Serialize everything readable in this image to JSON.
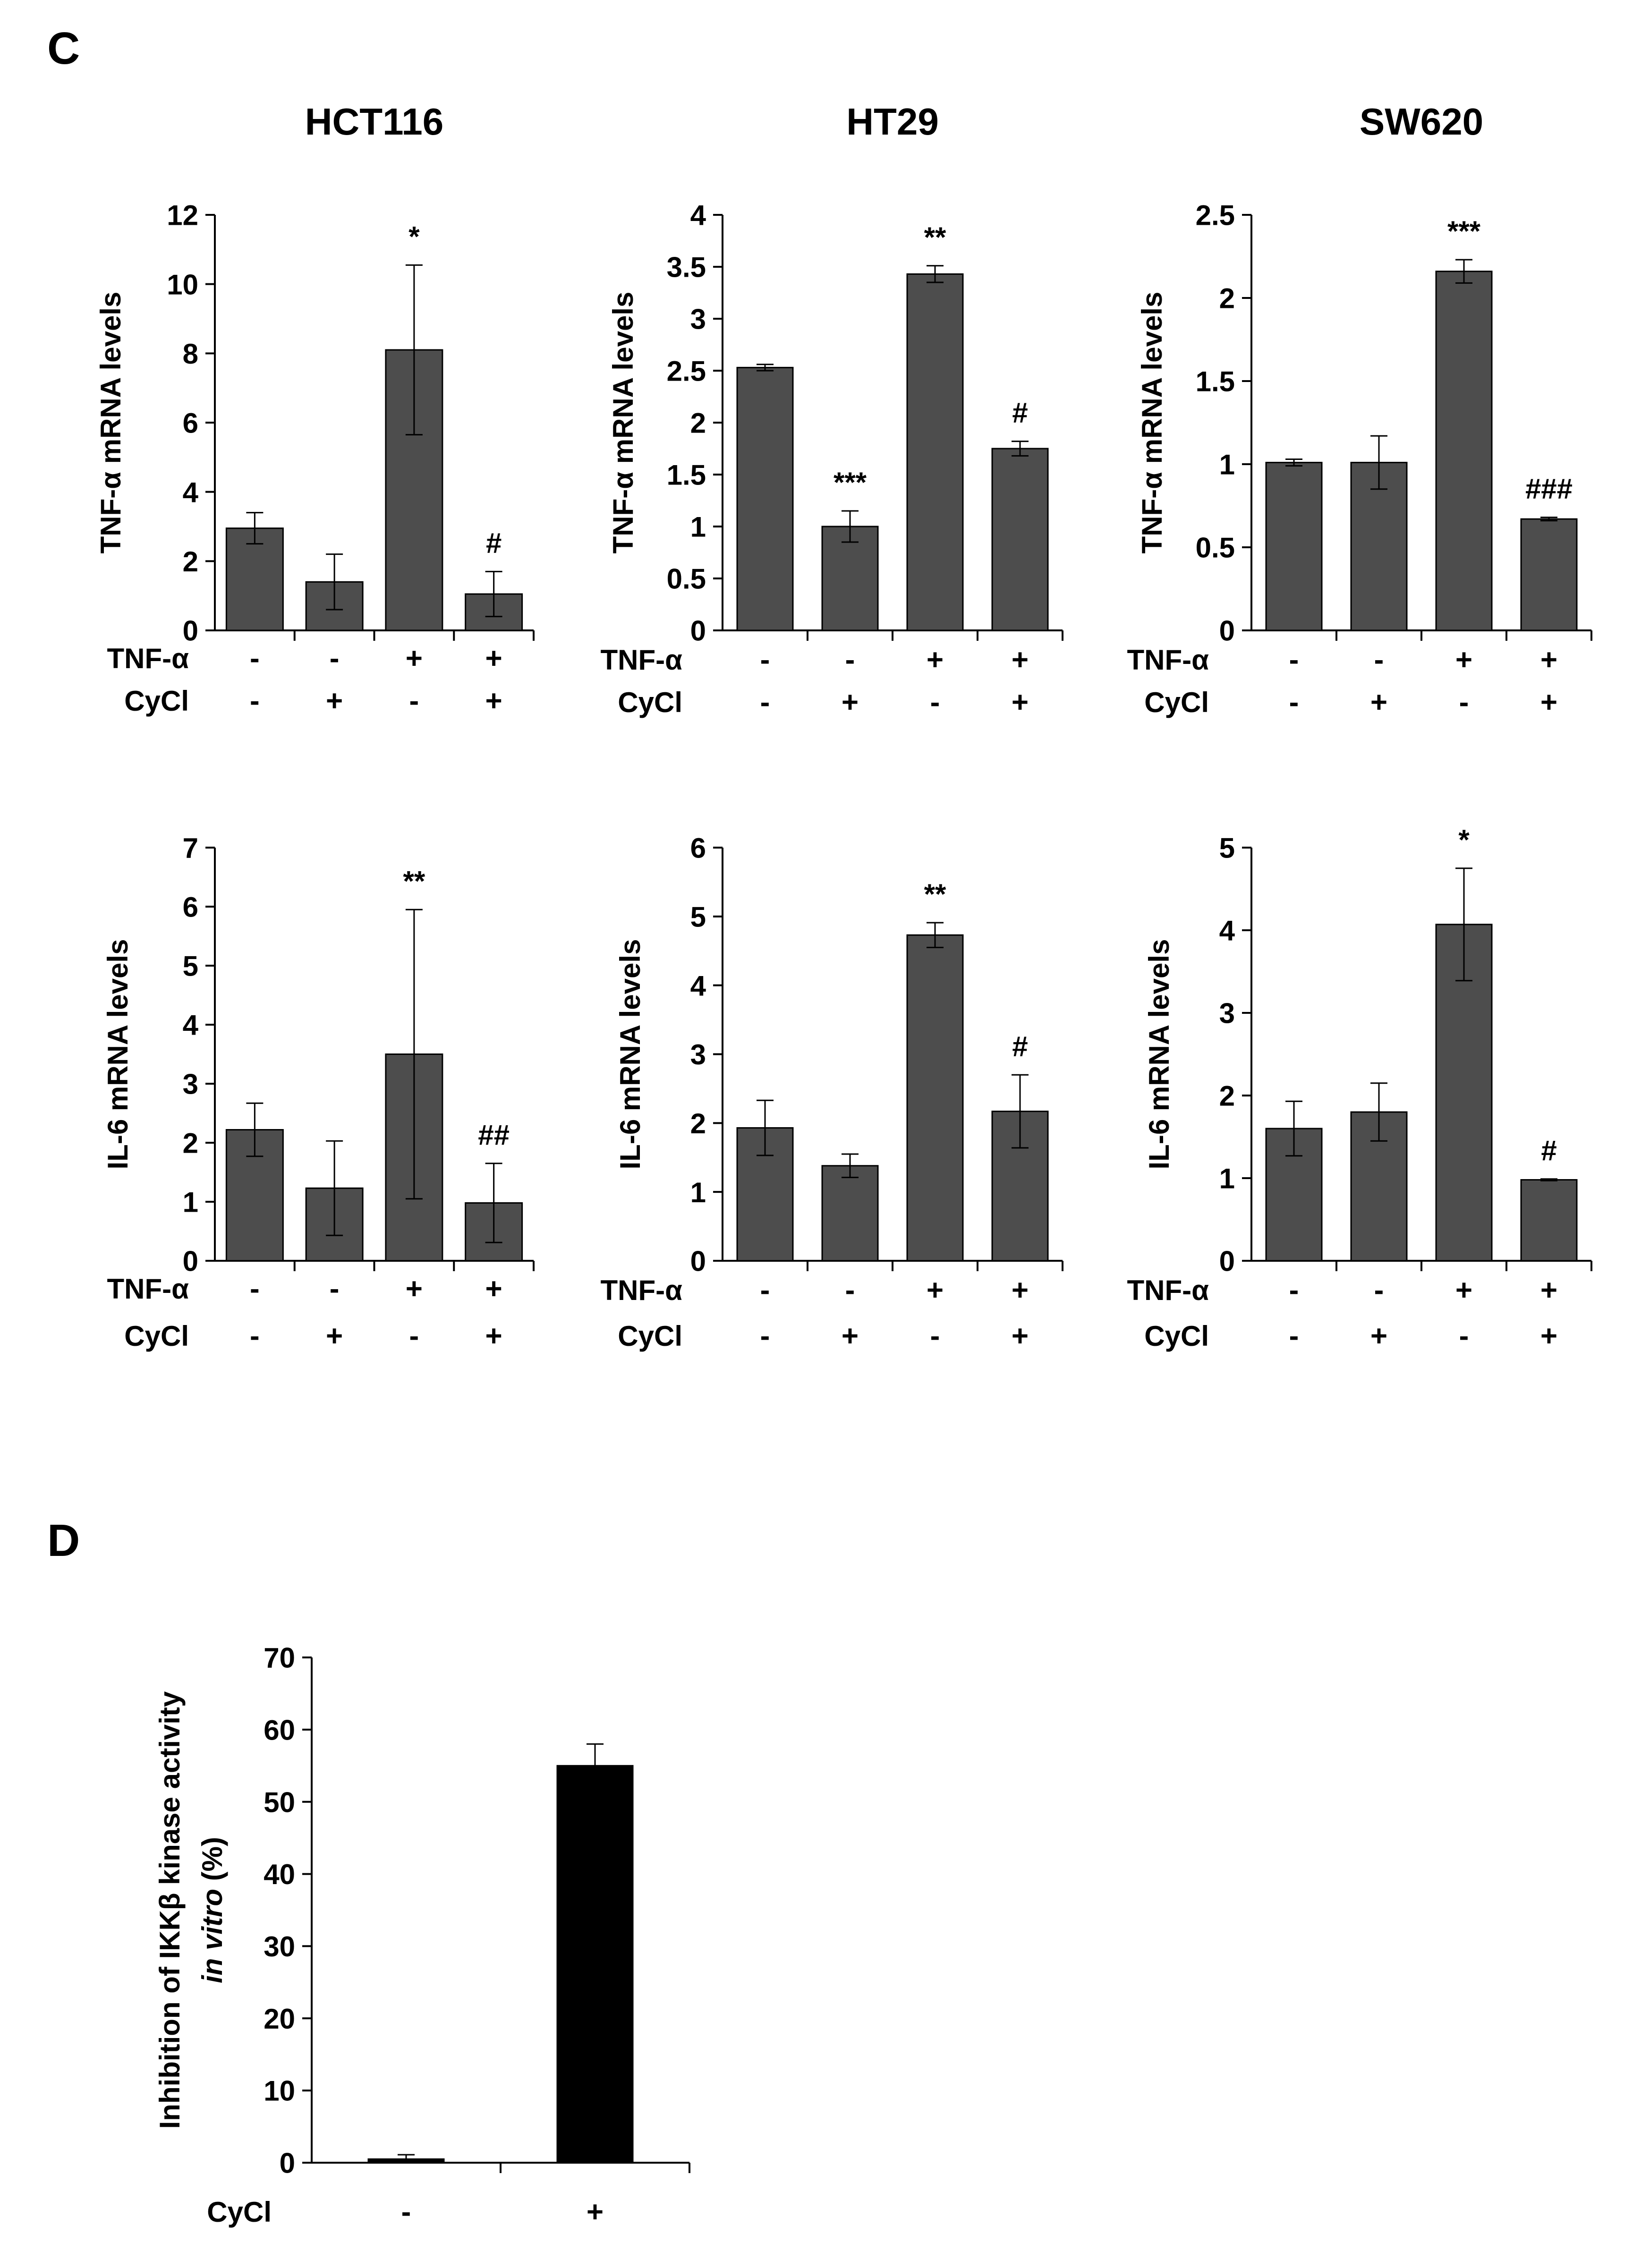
{
  "panels": {
    "C": {
      "label": "C"
    },
    "D": {
      "label": "D"
    }
  },
  "colors": {
    "bar_gray": "#4d4d4d",
    "bar_black": "#000000",
    "axis": "#000000"
  },
  "chart_data": [
    {
      "id": "c1",
      "type": "bar",
      "title": "HCT116",
      "ylabel": "TNF-α mRNA levels",
      "ylim": [
        0,
        12
      ],
      "yticks": [
        "0",
        "2",
        "4",
        "6",
        "8",
        "10",
        "12"
      ],
      "values": [
        2.95,
        1.4,
        8.1,
        1.05
      ],
      "errors": [
        0.45,
        0.8,
        2.45,
        0.65
      ],
      "significance": [
        "",
        "",
        "*",
        "#"
      ],
      "conditions": [
        {
          "label": "TNF-α",
          "marks": [
            "-",
            "-",
            "+",
            "+"
          ]
        },
        {
          "label": "CyCl",
          "marks": [
            "-",
            "+",
            "-",
            "+"
          ]
        }
      ]
    },
    {
      "id": "c2",
      "type": "bar",
      "title": "HT29",
      "ylabel": "TNF-α mRNA levels",
      "ylim": [
        0,
        4
      ],
      "yticks": [
        "0",
        "0.5",
        "1",
        "1.5",
        "2",
        "2.5",
        "3",
        "3.5",
        "4"
      ],
      "values": [
        2.53,
        1.0,
        3.43,
        1.75
      ],
      "errors": [
        0.03,
        0.15,
        0.08,
        0.07
      ],
      "significance": [
        "",
        "***",
        "**",
        "#"
      ],
      "conditions": [
        {
          "label": "TNF-α",
          "marks": [
            "-",
            "-",
            "+",
            "+"
          ]
        },
        {
          "label": "CyCl",
          "marks": [
            "-",
            "+",
            "-",
            "+"
          ]
        }
      ]
    },
    {
      "id": "c3",
      "type": "bar",
      "title": "SW620",
      "ylabel": "TNF-α mRNA levels",
      "ylim": [
        0,
        2.5
      ],
      "yticks": [
        "0",
        "0.5",
        "1",
        "1.5",
        "2",
        "2.5"
      ],
      "values": [
        1.01,
        1.01,
        2.16,
        0.67
      ],
      "errors": [
        0.02,
        0.16,
        0.07,
        0.01
      ],
      "significance": [
        "",
        "",
        "***",
        "###"
      ],
      "conditions": [
        {
          "label": "TNF-α",
          "marks": [
            "-",
            "-",
            "+",
            "+"
          ]
        },
        {
          "label": "CyCl",
          "marks": [
            "-",
            "+",
            "-",
            "+"
          ]
        }
      ]
    },
    {
      "id": "c4",
      "type": "bar",
      "title": "",
      "ylabel": "IL-6 mRNA levels",
      "ylim": [
        0,
        7
      ],
      "yticks": [
        "0",
        "1",
        "2",
        "3",
        "4",
        "5",
        "6",
        "7"
      ],
      "values": [
        2.22,
        1.23,
        3.5,
        0.98
      ],
      "errors": [
        0.45,
        0.8,
        2.45,
        0.67
      ],
      "significance": [
        "",
        "",
        "**",
        "##"
      ],
      "conditions": [
        {
          "label": "TNF-α",
          "marks": [
            "-",
            "-",
            "+",
            "+"
          ]
        },
        {
          "label": "CyCl",
          "marks": [
            "-",
            "+",
            "-",
            "+"
          ]
        }
      ]
    },
    {
      "id": "c5",
      "type": "bar",
      "title": "",
      "ylabel": "IL-6 mRNA levels",
      "ylim": [
        0,
        6
      ],
      "yticks": [
        "0",
        "1",
        "2",
        "3",
        "4",
        "5",
        "6"
      ],
      "values": [
        1.93,
        1.38,
        4.73,
        2.17
      ],
      "errors": [
        0.4,
        0.17,
        0.18,
        0.53
      ],
      "significance": [
        "",
        "",
        "**",
        "#"
      ],
      "conditions": [
        {
          "label": "TNF-α",
          "marks": [
            "-",
            "-",
            "+",
            "+"
          ]
        },
        {
          "label": "CyCl",
          "marks": [
            "-",
            "+",
            "-",
            "+"
          ]
        }
      ]
    },
    {
      "id": "c6",
      "type": "bar",
      "title": "",
      "ylabel": "IL-6 mRNA levels",
      "ylim": [
        0,
        5
      ],
      "yticks": [
        "0",
        "1",
        "2",
        "3",
        "4",
        "5"
      ],
      "values": [
        1.6,
        1.8,
        4.07,
        0.98
      ],
      "errors": [
        0.33,
        0.35,
        0.68,
        0.01
      ],
      "significance": [
        "",
        "",
        "*",
        "#"
      ],
      "conditions": [
        {
          "label": "TNF-α",
          "marks": [
            "-",
            "-",
            "+",
            "+"
          ]
        },
        {
          "label": "CyCl",
          "marks": [
            "-",
            "+",
            "-",
            "+"
          ]
        }
      ]
    },
    {
      "id": "d1",
      "type": "bar",
      "title": "",
      "ylabel": "Inhibition of IKKβ kinase activity",
      "ylabel_line2_main": "in vitro",
      "ylabel_line2_suffix": " (%)",
      "ylim": [
        0,
        70
      ],
      "yticks": [
        "0",
        "10",
        "20",
        "30",
        "40",
        "50",
        "60",
        "70"
      ],
      "values": [
        0.5,
        55
      ],
      "errors": [
        0.6,
        3.0
      ],
      "significance": [
        "",
        ""
      ],
      "conditions": [
        {
          "label": "CyCl",
          "marks": [
            "-",
            "+"
          ]
        }
      ]
    }
  ]
}
